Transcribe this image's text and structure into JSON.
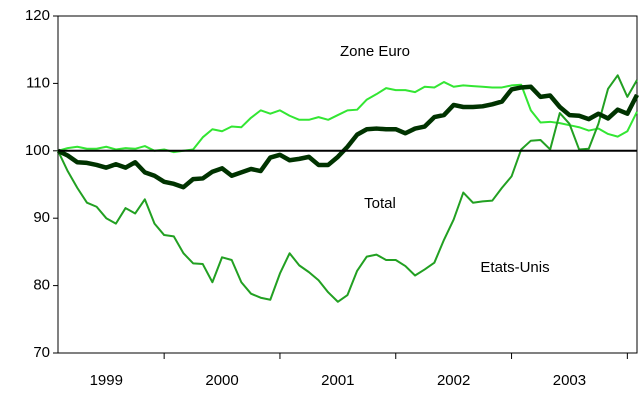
{
  "chart_data": {
    "type": "line",
    "x": [
      0,
      1,
      2,
      3,
      4,
      5,
      6,
      7,
      8,
      9,
      10,
      11,
      12,
      13,
      14,
      15,
      16,
      17,
      18,
      19,
      20,
      21,
      22,
      23,
      24,
      25,
      26,
      27,
      28,
      29,
      30,
      31,
      32,
      33,
      34,
      35,
      36,
      37,
      38,
      39,
      40,
      41,
      42,
      43,
      44,
      45,
      46,
      47,
      48,
      49,
      50,
      51,
      52,
      53,
      54,
      55,
      56,
      57,
      58,
      59,
      60
    ],
    "xlim": [
      0,
      60
    ],
    "xticks": [
      {
        "value": 5,
        "label": "1999"
      },
      {
        "value": 17,
        "label": "2000"
      },
      {
        "value": 29,
        "label": "2001"
      },
      {
        "value": 41,
        "label": "2002"
      },
      {
        "value": 53,
        "label": "2003"
      }
    ],
    "ylim": [
      70,
      120
    ],
    "yticks": [
      70,
      80,
      90,
      100,
      110,
      120
    ],
    "reference_line": 100,
    "grid": false,
    "annotations": [
      "Zone Euro",
      "Total",
      "Etats-Unis"
    ],
    "series": [
      {
        "name": "Zone Euro",
        "color": "#33e633",
        "width": 2,
        "values": [
          100,
          100.4,
          100.6,
          100.3,
          100.3,
          100.6,
          100.2,
          100.4,
          100.3,
          100.7,
          100,
          100.2,
          99.8,
          100,
          100.2,
          102,
          103.2,
          102.9,
          103.6,
          103.5,
          104.9,
          106,
          105.5,
          106,
          105.2,
          104.6,
          104.6,
          105,
          104.6,
          105.3,
          106,
          106.1,
          107.6,
          108.4,
          109.3,
          109,
          109,
          108.7,
          109.5,
          109.4,
          110.2,
          109.5,
          109.7,
          109.6,
          109.5,
          109.4,
          109.4,
          109.7,
          109.8,
          106,
          104.2,
          104.3,
          104.1,
          103.8,
          103.5,
          103,
          103.3,
          102.5,
          102.1,
          102.9,
          105.8
        ]
      },
      {
        "name": "Etats-Unis",
        "color": "#22a022",
        "width": 2,
        "values": [
          100,
          97,
          94.5,
          92.3,
          91.7,
          90,
          89.2,
          91.5,
          90.7,
          92.8,
          89.2,
          87.5,
          87.3,
          84.8,
          83.3,
          83.2,
          80.5,
          84.2,
          83.8,
          80.5,
          78.8,
          78.2,
          77.9,
          81.8,
          84.8,
          83,
          82,
          80.8,
          79,
          77.6,
          78.6,
          82.2,
          84.3,
          84.6,
          83.8,
          83.8,
          82.9,
          81.5,
          82.4,
          83.4,
          86.8,
          89.8,
          93.8,
          92.3,
          92.5,
          92.6,
          94.5,
          96.2,
          100.2,
          101.5,
          101.6,
          100.2,
          105.6,
          104,
          100.2,
          100.3,
          104,
          109.2,
          111.2,
          108,
          110.5
        ]
      },
      {
        "name": "Total",
        "color": "#003300",
        "width": 4.5,
        "values": [
          100,
          99.3,
          98.3,
          98.2,
          97.9,
          97.5,
          98,
          97.5,
          98.3,
          96.8,
          96.3,
          95.4,
          95.1,
          94.6,
          95.8,
          95.9,
          96.9,
          97.4,
          96.3,
          96.8,
          97.3,
          97,
          99,
          99.4,
          98.6,
          98.8,
          99.1,
          97.9,
          97.9,
          99.1,
          100.6,
          102.4,
          103.2,
          103.3,
          103.2,
          103.2,
          102.6,
          103.3,
          103.6,
          105,
          105.3,
          106.8,
          106.5,
          106.5,
          106.6,
          106.9,
          107.3,
          109.1,
          109.4,
          109.5,
          108,
          108.2,
          106.5,
          105.3,
          105.2,
          104.7,
          105.5,
          104.8,
          106.1,
          105.5,
          108.3
        ]
      }
    ]
  }
}
